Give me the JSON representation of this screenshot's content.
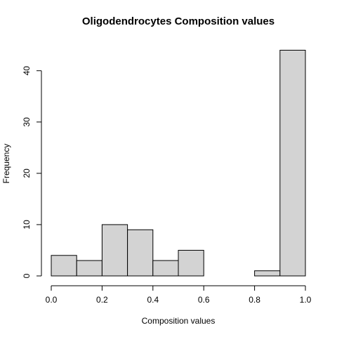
{
  "chart_data": {
    "type": "bar",
    "title": "Oligodendrocytes Composition values",
    "xlabel": "Composition values",
    "ylabel": "Frequency",
    "xlim": [
      0,
      1
    ],
    "ylim": [
      0,
      44
    ],
    "bins": [
      {
        "start": 0.0,
        "end": 0.1,
        "count": 4
      },
      {
        "start": 0.1,
        "end": 0.2,
        "count": 3
      },
      {
        "start": 0.2,
        "end": 0.3,
        "count": 10
      },
      {
        "start": 0.3,
        "end": 0.4,
        "count": 9
      },
      {
        "start": 0.4,
        "end": 0.5,
        "count": 3
      },
      {
        "start": 0.5,
        "end": 0.6,
        "count": 5
      },
      {
        "start": 0.6,
        "end": 0.7,
        "count": 0
      },
      {
        "start": 0.7,
        "end": 0.8,
        "count": 0
      },
      {
        "start": 0.8,
        "end": 0.9,
        "count": 1
      },
      {
        "start": 0.9,
        "end": 1.0,
        "count": 44
      }
    ],
    "x_ticks": [
      {
        "value": 0.0,
        "label": "0.0"
      },
      {
        "value": 0.2,
        "label": "0.2"
      },
      {
        "value": 0.4,
        "label": "0.4"
      },
      {
        "value": 0.6,
        "label": "0.6"
      },
      {
        "value": 0.8,
        "label": "0.8"
      },
      {
        "value": 1.0,
        "label": "1.0"
      }
    ],
    "y_ticks": [
      {
        "value": 0,
        "label": "0"
      },
      {
        "value": 10,
        "label": "10"
      },
      {
        "value": 20,
        "label": "20"
      },
      {
        "value": 30,
        "label": "30"
      },
      {
        "value": 40,
        "label": "40"
      }
    ],
    "grid": false,
    "legend": "none",
    "colors": {
      "bar_fill": "#d3d3d3",
      "bar_stroke": "#000000"
    }
  }
}
